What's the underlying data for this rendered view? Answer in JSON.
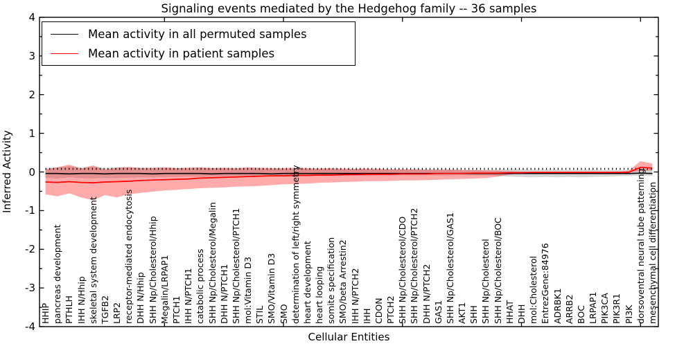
{
  "title": "Signaling events mediated by the Hedgehog family -- 36 samples",
  "axes": {
    "ylabel": "Inferred Activity",
    "xlabel": "Cellular Entities",
    "yticks": [
      4,
      3,
      2,
      1,
      0,
      -1,
      -2,
      -3,
      -4
    ]
  },
  "legend": {
    "entries": [
      {
        "label": "Mean activity in all permuted samples",
        "color": "#000000"
      },
      {
        "label": "Mean activity in patient samples",
        "color": "#ff0000"
      }
    ]
  },
  "colors": {
    "patient_line": "#ff0000",
    "permuted_line": "#000000",
    "patient_band": "#ff0000",
    "permuted_band": "#000000"
  },
  "chart_data": {
    "type": "line",
    "title": "Signaling events mediated by the Hedgehog family -- 36 samples",
    "xlabel": "Cellular Entities",
    "ylabel": "Inferred Activity",
    "ylim": [
      -4,
      4
    ],
    "grid": false,
    "legend_position": "upper left",
    "xticks": [
      10,
      20,
      30,
      40,
      50
    ],
    "categories": [
      "HHIP",
      "pancreas development",
      "PTHLH",
      "IHH N/Hhip",
      "skeletal system development",
      "TGFB2",
      "LRP2",
      "receptor-mediated endocytosis",
      "DHH N/Hhip",
      "SHH Np/Cholesterol/Hhip",
      "Megalin/LRPAP1",
      "PTCH1",
      "IHH N/PTCH1",
      "catabolic process",
      "SHH Np/Cholesterol/Megalin",
      "DHH N/PTCH1",
      "SHH Np/Cholesterol/PTCH1",
      "mol:Vitamin D3",
      "STIL",
      "SMO/Vitamin D3",
      "SMO",
      "determination of left/right symmetry",
      "heart development",
      "heart looping",
      "somite specification",
      "SMO/beta Arrestin2",
      "IHH N/PTCH2",
      "IHH",
      "CDON",
      "PTCH2",
      "SHH Np/Cholesterol/CDO",
      "SHH Np/Cholesterol/PTCH2",
      "DHH N/PTCH2",
      "GAS1",
      "SHH Np/Cholesterol/GAS1",
      "AKT1",
      "SHH",
      "SHH Np/Cholesterol",
      "SHH Np/Cholesterol/BOC",
      "HHAT",
      "DHH",
      "mol:Cholesterol",
      "EntrezGene:84976",
      "ADRBK1",
      "ARRB2",
      "BOC",
      "LRPAP1",
      "PIK3CA",
      "PIK3R1",
      "PI3K",
      "dorsoventral neural tube patterning",
      "mesenchymal cell differentiation"
    ],
    "series": [
      {
        "name": "Mean activity in all permuted samples",
        "color": "#000000",
        "values": [
          -0.04,
          -0.04,
          -0.05,
          -0.04,
          -0.04,
          -0.05,
          -0.04,
          -0.04,
          -0.04,
          -0.05,
          -0.04,
          -0.04,
          -0.04,
          -0.04,
          -0.05,
          -0.04,
          -0.04,
          -0.04,
          -0.04,
          -0.05,
          -0.04,
          -0.04,
          -0.04,
          -0.04,
          -0.04,
          -0.04,
          -0.04,
          -0.04,
          -0.04,
          -0.04,
          -0.04,
          -0.04,
          -0.04,
          -0.04,
          -0.04,
          -0.04,
          -0.04,
          -0.04,
          -0.04,
          -0.04,
          -0.04,
          -0.04,
          -0.04,
          -0.04,
          -0.04,
          -0.04,
          -0.04,
          -0.04,
          -0.04,
          -0.04,
          -0.03,
          -0.04
        ]
      },
      {
        "name": "Mean activity in patient samples",
        "color": "#ff0000",
        "values": [
          -0.26,
          -0.27,
          -0.25,
          -0.27,
          -0.28,
          -0.26,
          -0.25,
          -0.24,
          -0.22,
          -0.21,
          -0.2,
          -0.19,
          -0.18,
          -0.16,
          -0.15,
          -0.14,
          -0.13,
          -0.12,
          -0.11,
          -0.1,
          -0.1,
          -0.09,
          -0.09,
          -0.08,
          -0.08,
          -0.07,
          -0.07,
          -0.06,
          -0.06,
          -0.06,
          -0.05,
          -0.05,
          -0.05,
          -0.04,
          -0.04,
          -0.04,
          -0.03,
          -0.03,
          -0.03,
          -0.02,
          -0.02,
          -0.01,
          -0.01,
          -0.01,
          -0.01,
          -0.01,
          -0.01,
          -0.01,
          -0.01,
          -0.01,
          0.12,
          0.1
        ]
      }
    ],
    "bands": [
      {
        "name": "permuted samples range",
        "color": "#000000",
        "opacity": 0.16,
        "upper": [
          0.1,
          0.12,
          0.15,
          0.11,
          0.14,
          0.1,
          0.12,
          0.12,
          0.11,
          0.1,
          0.11,
          0.1,
          0.1,
          0.11,
          0.1,
          0.1,
          0.09,
          0.1,
          0.09,
          0.09,
          0.08,
          0.09,
          0.08,
          0.08,
          0.08,
          0.07,
          0.08,
          0.07,
          0.07,
          0.07,
          0.06,
          0.07,
          0.06,
          0.06,
          0.06,
          0.06,
          0.05,
          0.06,
          0.06,
          0.07,
          0.07,
          0.06,
          0.06,
          0.06,
          0.05,
          0.06,
          0.06,
          0.05,
          0.05,
          0.05,
          0.06,
          0.08
        ],
        "lower": [
          -0.15,
          -0.17,
          -0.14,
          -0.16,
          -0.17,
          -0.15,
          -0.16,
          -0.15,
          -0.14,
          -0.14,
          -0.13,
          -0.13,
          -0.12,
          -0.13,
          -0.12,
          -0.12,
          -0.11,
          -0.12,
          -0.11,
          -0.11,
          -0.1,
          -0.11,
          -0.1,
          -0.1,
          -0.1,
          -0.1,
          -0.09,
          -0.1,
          -0.09,
          -0.09,
          -0.09,
          -0.09,
          -0.09,
          -0.09,
          -0.09,
          -0.08,
          -0.09,
          -0.09,
          -0.1,
          -0.12,
          -0.13,
          -0.14,
          -0.13,
          -0.14,
          -0.13,
          -0.14,
          -0.13,
          -0.12,
          -0.11,
          -0.1,
          -0.09,
          -0.1
        ]
      },
      {
        "name": "patient samples range",
        "color": "#ff0000",
        "opacity": 0.33,
        "upper": [
          0.07,
          0.12,
          0.19,
          0.09,
          0.17,
          0.06,
          0.11,
          0.13,
          0.1,
          0.11,
          0.12,
          0.1,
          0.11,
          0.12,
          0.1,
          0.11,
          0.1,
          0.12,
          0.11,
          0.1,
          0.1,
          0.11,
          0.1,
          0.09,
          0.1,
          0.09,
          0.08,
          0.09,
          0.08,
          0.07,
          0.07,
          0.07,
          0.06,
          0.06,
          0.06,
          0.05,
          0.05,
          0.04,
          0.03,
          0.02,
          0.01,
          0.0,
          0.0,
          0.0,
          0.0,
          0.0,
          0.0,
          0.0,
          0.0,
          0.03,
          0.28,
          0.22
        ],
        "lower": [
          -0.58,
          -0.63,
          -0.55,
          -0.66,
          -0.73,
          -0.6,
          -0.66,
          -0.58,
          -0.54,
          -0.51,
          -0.48,
          -0.46,
          -0.44,
          -0.42,
          -0.41,
          -0.4,
          -0.38,
          -0.37,
          -0.36,
          -0.34,
          -0.32,
          -0.31,
          -0.3,
          -0.28,
          -0.27,
          -0.26,
          -0.25,
          -0.24,
          -0.24,
          -0.23,
          -0.22,
          -0.22,
          -0.21,
          -0.2,
          -0.19,
          -0.18,
          -0.17,
          -0.16,
          -0.12,
          -0.07,
          -0.03,
          -0.01,
          -0.01,
          -0.01,
          -0.01,
          -0.01,
          -0.01,
          -0.01,
          -0.01,
          -0.01,
          0.02,
          0.04
        ]
      }
    ]
  }
}
